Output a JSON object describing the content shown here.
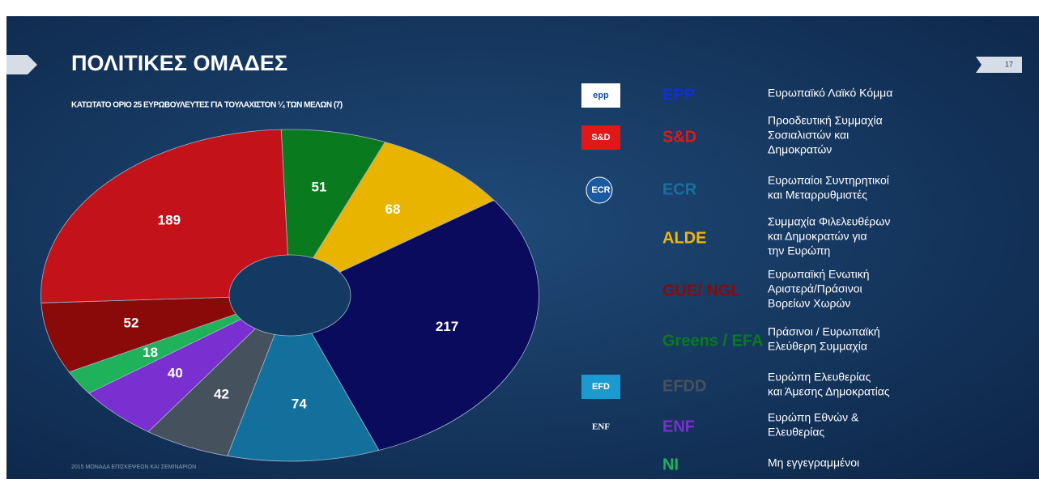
{
  "chart_data": {
    "type": "pie",
    "title": "ΠΟΛΙΤΙΚΕΣ ΟΜΑΔΕΣ",
    "subtitle": "ΚΑΤΩΤΑΤΟ ΟΡΙΟ 25 ΕΥΡΩΒΟΥΛΕΥΤΕΣ ΓΙΑ ΤΟΥΛΑΧΙΣΤΟΝ ¼ ΤΩΝ ΜΕΛΩΝ (7)",
    "donut": true,
    "values": [
      51,
      68,
      217,
      74,
      42,
      40,
      18,
      52,
      189
    ],
    "colors": [
      "#0a7a1e",
      "#e8b400",
      "#0b0b5e",
      "#136f9c",
      "#45525d",
      "#7a2fd0",
      "#1fb25a",
      "#8a0a0a",
      "#c4121a"
    ]
  },
  "legend": [
    {
      "abbr": "EPP",
      "color": "#1030d8",
      "logo": "epp",
      "lines": [
        "Ευρωπαϊκό Λαϊκό Κόμμα"
      ]
    },
    {
      "abbr": "S&D",
      "color": "#e01818",
      "logo": "S&D",
      "lines": [
        "Προοδευτική Συμμαχία",
        "Σοσιαλιστών και",
        "Δημοκρατών"
      ]
    },
    {
      "abbr": "ECR",
      "color": "#1a6fa0",
      "logo": "ECR",
      "lines": [
        "Ευρωπαίοι Συντηρητικοί",
        "και Μεταρρυθμιστές"
      ]
    },
    {
      "abbr": "ALDE",
      "color": "#f0b800",
      "lines": [
        "Συμμαχία Φιλελευθέρων",
        "και Δημοκρατών για",
        "την Ευρώπη"
      ]
    },
    {
      "abbr": "GUE/ NGL",
      "color": "#8a0a0a",
      "lines": [
        "Ευρωπαϊκή Ενωτική",
        "Αριστερά/Πράσινοι",
        "Βορείων Χωρών"
      ]
    },
    {
      "abbr": "Greens / EFA",
      "color": "#0a7a1e",
      "lines": [
        "Πράσινοι / Ευρωπαϊκή",
        "Ελεύθερη Συμμαχία"
      ]
    },
    {
      "abbr": "EFDD",
      "color": "#45525d",
      "logo": "EFD",
      "lines": [
        "Ευρώπη Ελευθερίας",
        "και Άμεσης Δημοκρατίας"
      ]
    },
    {
      "abbr": "ENF",
      "color": "#7a2fd0",
      "logo": "ENF",
      "lines": [
        "Ευρώπη Εθνών &",
        "Ελευθερίας"
      ]
    },
    {
      "abbr": "NI",
      "color": "#1fb25a",
      "lines": [
        "Μη εγγεγραμμένοι"
      ]
    }
  ],
  "page_number": "17",
  "footer": "2015 ΜΟΝΑΔΑ ΕΠΙΣΚΕΨΕΩΝ ΚΑΙ ΣΕΜΙΝΑΡΙΩΝ"
}
